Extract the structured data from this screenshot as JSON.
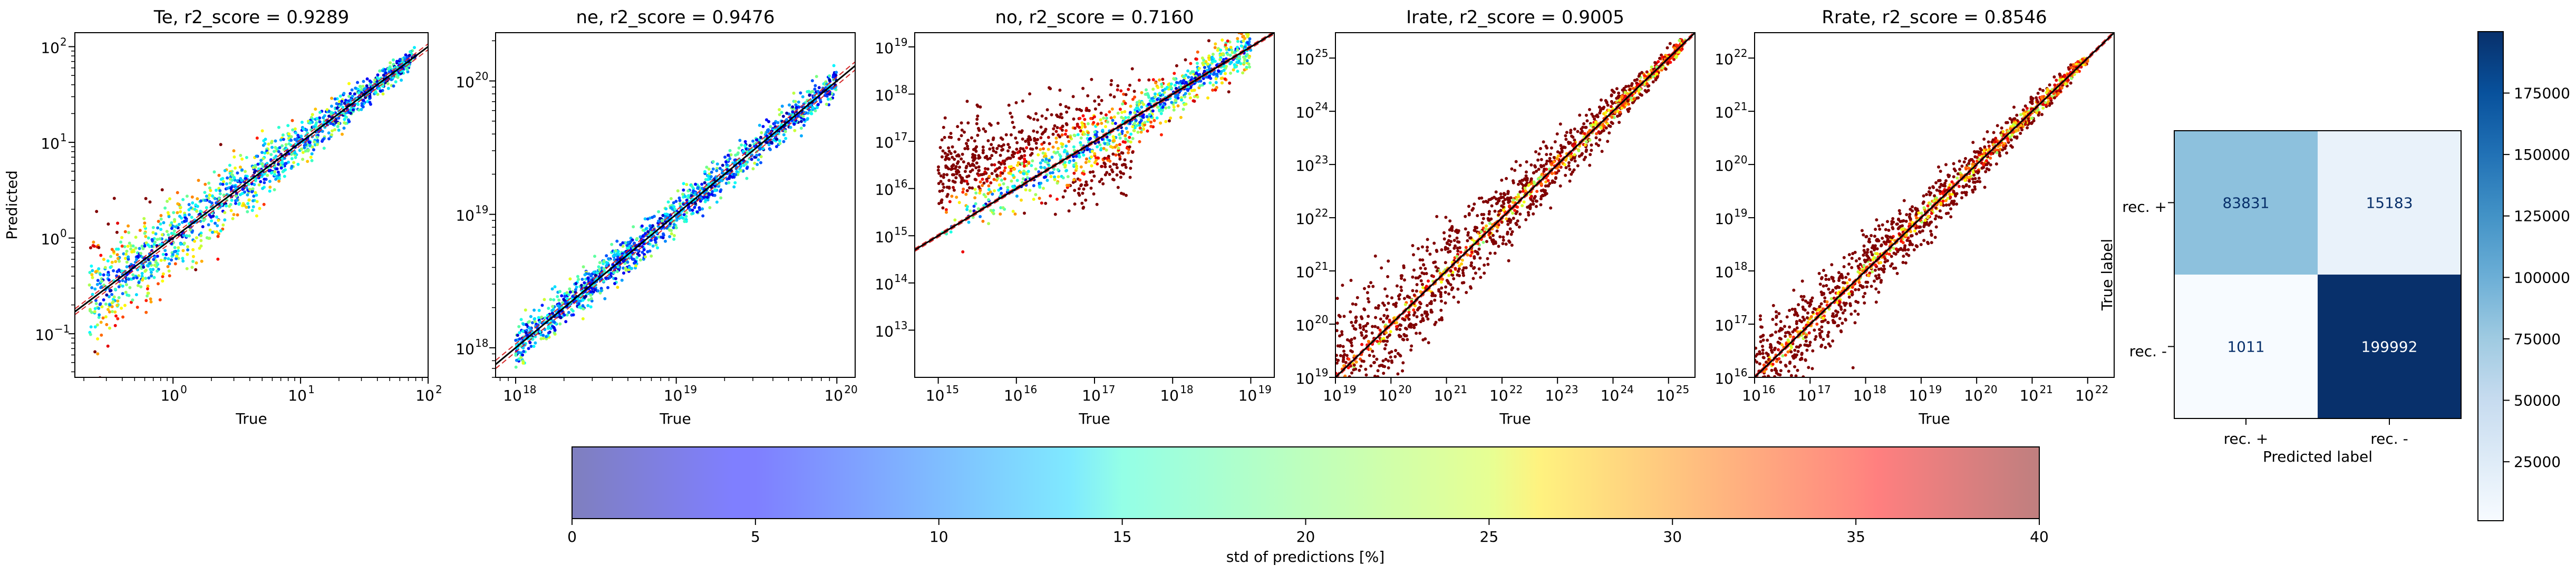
{
  "chart_data": [
    {
      "type": "scatter",
      "title": "Te, r2_score = 0.9289",
      "xlabel": "True",
      "ylabel": "Predicted",
      "xscale": "log",
      "yscale": "log",
      "xlim": [
        0.17,
        100
      ],
      "ylim": [
        0.035,
        140
      ],
      "xticks": [
        {
          "value": 1,
          "base": "10",
          "exp": "0"
        },
        {
          "value": 10,
          "base": "10",
          "exp": "1"
        },
        {
          "value": 100,
          "base": "10",
          "exp": "2"
        }
      ],
      "yticks": [
        {
          "value": 0.1,
          "base": "10",
          "exp": "−1"
        },
        {
          "value": 1,
          "base": "10",
          "exp": "0"
        },
        {
          "value": 10,
          "base": "10",
          "exp": "1"
        },
        {
          "value": 100,
          "base": "10",
          "exp": "2"
        }
      ],
      "true_range": [
        0.22,
        80
      ],
      "spread_low": 0.55,
      "spread_high": 0.08
    },
    {
      "type": "scatter",
      "title": "ne, r2_score = 0.9476",
      "xlabel": "True",
      "ylabel": "",
      "xscale": "log",
      "yscale": "log",
      "xlim": [
        7.5e+17,
        1.3e+20
      ],
      "ylim": [
        6e+17,
        2.3e+20
      ],
      "xticks": [
        {
          "value": 1e+18,
          "base": "10",
          "exp": "18"
        },
        {
          "value": 1e+19,
          "base": "10",
          "exp": "19"
        },
        {
          "value": 1e+20,
          "base": "10",
          "exp": "20"
        }
      ],
      "yticks": [
        {
          "value": 1e+18,
          "base": "10",
          "exp": "18"
        },
        {
          "value": 1e+19,
          "base": "10",
          "exp": "19"
        },
        {
          "value": 1e+20,
          "base": "10",
          "exp": "20"
        }
      ],
      "true_range": [
        1e+18,
        1e+20
      ],
      "spread_low": 0.15,
      "spread_high": 0.12
    },
    {
      "type": "scatter",
      "title": "no, r2_score = 0.7160",
      "xlabel": "True",
      "ylabel": "",
      "xscale": "log",
      "yscale": "log",
      "xlim": [
        500000000000000.0,
        2e+19
      ],
      "ylim": [
        1000000000000.0,
        2e+19
      ],
      "xticks": [
        {
          "value": 1000000000000000.0,
          "base": "10",
          "exp": "15"
        },
        {
          "value": 1e+16,
          "base": "10",
          "exp": "16"
        },
        {
          "value": 1e+17,
          "base": "10",
          "exp": "17"
        },
        {
          "value": 1e+18,
          "base": "10",
          "exp": "18"
        },
        {
          "value": 1e+19,
          "base": "10",
          "exp": "19"
        }
      ],
      "yticks": [
        {
          "value": 10000000000000.0,
          "base": "10",
          "exp": "13"
        },
        {
          "value": 100000000000000.0,
          "base": "10",
          "exp": "14"
        },
        {
          "value": 1000000000000000.0,
          "base": "10",
          "exp": "15"
        },
        {
          "value": 1e+16,
          "base": "10",
          "exp": "16"
        },
        {
          "value": 1e+17,
          "base": "10",
          "exp": "17"
        },
        {
          "value": 1e+18,
          "base": "10",
          "exp": "18"
        },
        {
          "value": 1e+19,
          "base": "10",
          "exp": "19"
        }
      ],
      "true_range": [
        1000000000000000.0,
        1e+19
      ],
      "spread_low": 0.6,
      "spread_high": 0.45
    },
    {
      "type": "scatter",
      "title": "Irate, r2_score = 0.9005",
      "xlabel": "True",
      "ylabel": "",
      "xscale": "log",
      "yscale": "log",
      "xlim": [
        1e+19,
        3e+25
      ],
      "ylim": [
        1e+19,
        3e+25
      ],
      "xticks": [
        {
          "value": 1e+19,
          "base": "10",
          "exp": "19"
        },
        {
          "value": 1e+20,
          "base": "10",
          "exp": "20"
        },
        {
          "value": 1e+21,
          "base": "10",
          "exp": "21"
        },
        {
          "value": 1e+22,
          "base": "10",
          "exp": "22"
        },
        {
          "value": 1e+23,
          "base": "10",
          "exp": "23"
        },
        {
          "value": 1e+24,
          "base": "10",
          "exp": "24"
        },
        {
          "value": 1e+25,
          "base": "10",
          "exp": "25"
        }
      ],
      "yticks": [
        {
          "value": 1e+19,
          "base": "10",
          "exp": "19"
        },
        {
          "value": 1e+20,
          "base": "10",
          "exp": "20"
        },
        {
          "value": 1e+21,
          "base": "10",
          "exp": "21"
        },
        {
          "value": 1e+22,
          "base": "10",
          "exp": "22"
        },
        {
          "value": 1e+23,
          "base": "10",
          "exp": "23"
        },
        {
          "value": 1e+24,
          "base": "10",
          "exp": "24"
        },
        {
          "value": 1e+25,
          "base": "10",
          "exp": "25"
        }
      ],
      "true_range": [
        1e+19,
        2e+25
      ],
      "spread_low": 1.2,
      "spread_high": 0.1
    },
    {
      "type": "scatter",
      "title": "Rrate, r2_score = 0.8546",
      "xlabel": "True",
      "ylabel": "",
      "xscale": "log",
      "yscale": "log",
      "xlim": [
        1e+16,
        3e+22
      ],
      "ylim": [
        1e+16,
        3e+22
      ],
      "xticks": [
        {
          "value": 1e+16,
          "base": "10",
          "exp": "16"
        },
        {
          "value": 1e+17,
          "base": "10",
          "exp": "17"
        },
        {
          "value": 1e+18,
          "base": "10",
          "exp": "18"
        },
        {
          "value": 1e+19,
          "base": "10",
          "exp": "19"
        },
        {
          "value": 1e+20,
          "base": "10",
          "exp": "20"
        },
        {
          "value": 1e+21,
          "base": "10",
          "exp": "21"
        },
        {
          "value": 1e+22,
          "base": "10",
          "exp": "22"
        }
      ],
      "yticks": [
        {
          "value": 1e+16,
          "base": "10",
          "exp": "16"
        },
        {
          "value": 1e+17,
          "base": "10",
          "exp": "17"
        },
        {
          "value": 1e+18,
          "base": "10",
          "exp": "18"
        },
        {
          "value": 1e+19,
          "base": "10",
          "exp": "19"
        },
        {
          "value": 1e+20,
          "base": "10",
          "exp": "20"
        },
        {
          "value": 1e+21,
          "base": "10",
          "exp": "21"
        },
        {
          "value": 1e+22,
          "base": "10",
          "exp": "22"
        }
      ],
      "true_range": [
        1e+16,
        1e+22
      ],
      "spread_low": 0.9,
      "spread_high": 0.1
    },
    {
      "type": "heatmap",
      "title": "",
      "xlabel": "Predicted label",
      "ylabel": "True label",
      "x_categories": [
        "rec. +",
        "rec. -"
      ],
      "y_categories": [
        "rec. +",
        "rec. -"
      ],
      "values": [
        [
          83831,
          15183
        ],
        [
          1011,
          199992
        ]
      ],
      "colormap": "Blues",
      "colorbar": {
        "min": 1011,
        "max": 199992,
        "ticks": [
          25000,
          50000,
          75000,
          100000,
          125000,
          150000,
          175000
        ],
        "tick_labels": [
          "25000",
          "50000",
          "75000",
          "100000",
          "125000",
          "150000",
          "175000"
        ]
      }
    }
  ],
  "std_colorbar": {
    "label": "std of predictions [%]",
    "min": 0,
    "max": 40,
    "ticks": [
      0,
      5,
      10,
      15,
      20,
      25,
      30,
      35,
      40
    ],
    "tick_labels": [
      "0",
      "5",
      "10",
      "15",
      "20",
      "25",
      "30",
      "35",
      "40"
    ],
    "colormap": "jet (alpha 0.5)"
  },
  "colors": {
    "reference_line": "#000000",
    "error_band": "#d62728",
    "marker_saturated": "#800000"
  }
}
